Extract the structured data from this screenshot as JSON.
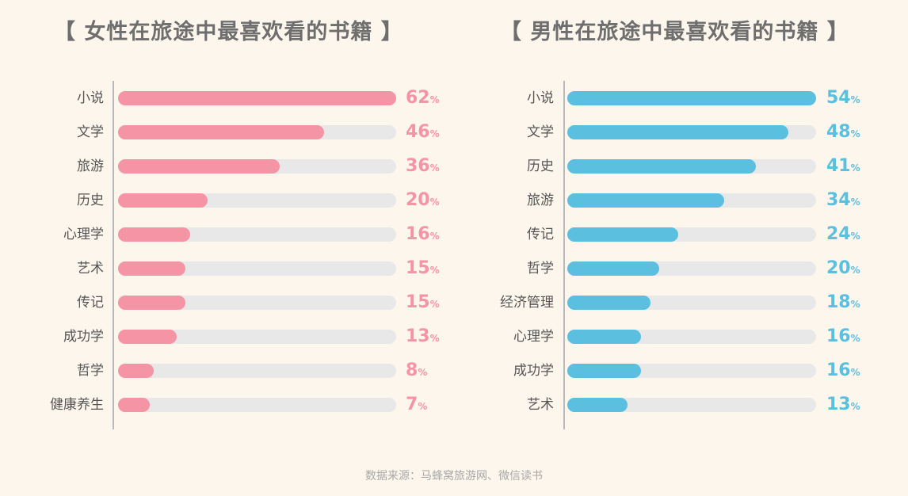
{
  "source": "数据来源：马蜂窝旅游网、微信读书",
  "chart_data": [
    {
      "type": "bar",
      "orientation": "horizontal",
      "title": "【 女性在旅途中最喜欢看的书籍 】",
      "value_unit": "%",
      "xlim": [
        0,
        62
      ],
      "color": "#f594a4",
      "track_color": "#e8e8e8",
      "categories": [
        "小说",
        "文学",
        "旅游",
        "历史",
        "心理学",
        "艺术",
        "传记",
        "成功学",
        "哲学",
        "健康养生"
      ],
      "values": [
        62,
        46,
        36,
        20,
        16,
        15,
        15,
        13,
        8,
        7
      ]
    },
    {
      "type": "bar",
      "orientation": "horizontal",
      "title": "【 男性在旅途中最喜欢看的书籍 】",
      "value_unit": "%",
      "xlim": [
        0,
        54
      ],
      "color": "#5bbfe0",
      "track_color": "#e8e8e8",
      "categories": [
        "小说",
        "文学",
        "历史",
        "旅游",
        "传记",
        "哲学",
        "经济管理",
        "心理学",
        "成功学",
        "艺术"
      ],
      "values": [
        54,
        48,
        41,
        34,
        24,
        20,
        18,
        16,
        16,
        13
      ]
    }
  ]
}
